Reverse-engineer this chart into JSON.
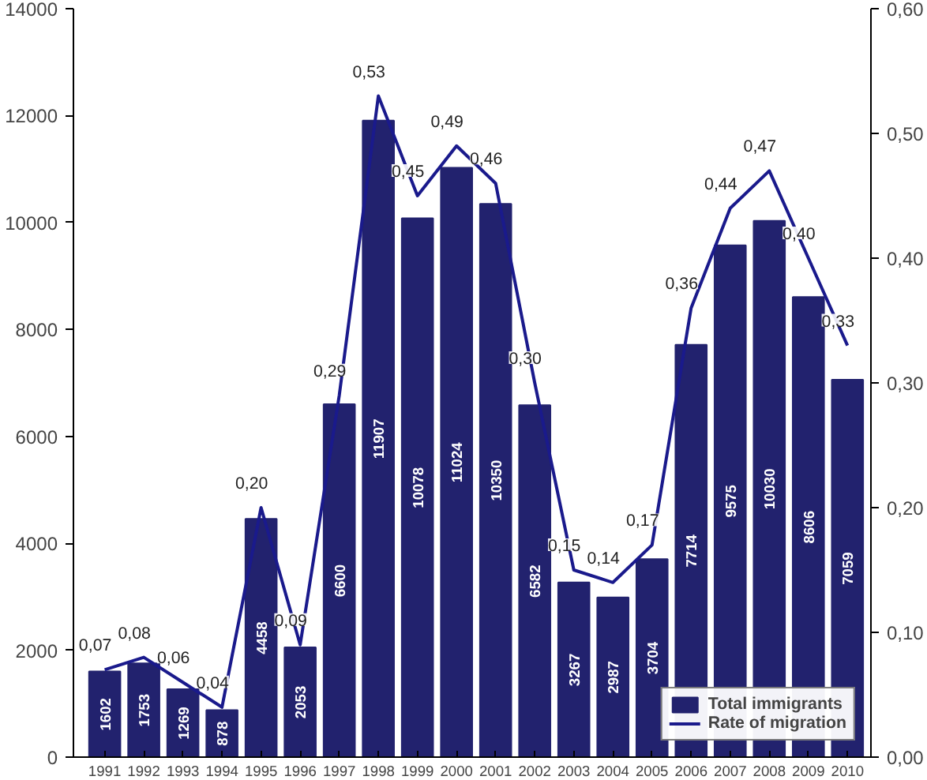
{
  "chart_data": {
    "type": "bar",
    "categories": [
      "1991",
      "1992",
      "1993",
      "1994",
      "1995",
      "1996",
      "1997",
      "1998",
      "1999",
      "2000",
      "2001",
      "2002",
      "2003",
      "2004",
      "2005",
      "2006",
      "2007",
      "2008",
      "2009",
      "2010"
    ],
    "series": [
      {
        "name": "Total immigrants",
        "color": "#22226e",
        "values": [
          1602,
          1753,
          1269,
          878,
          4458,
          2053,
          6600,
          11907,
          10078,
          11024,
          10350,
          6582,
          3267,
          2987,
          3704,
          7714,
          9575,
          10030,
          8606,
          7059
        ],
        "value_labels": [
          "1602",
          "1753",
          "1269",
          "878",
          "4458",
          "2053",
          "6600",
          "11907",
          "10078",
          "11024",
          "10350",
          "6582",
          "3267",
          "2987",
          "3704",
          "7714",
          "9575",
          "10030",
          "8606",
          "7059"
        ]
      },
      {
        "name": "Rate of migration",
        "type": "line",
        "axis": "y2",
        "color": "#1a1a8c",
        "values": [
          0.07,
          0.08,
          0.06,
          0.04,
          0.2,
          0.09,
          0.29,
          0.53,
          0.45,
          0.49,
          0.46,
          0.3,
          0.15,
          0.14,
          0.17,
          0.36,
          0.44,
          0.47,
          0.4,
          0.33
        ],
        "value_labels": [
          "0,07",
          "0,08",
          "0,06",
          "0,04",
          "0,20",
          "0,09",
          "0,29",
          "0,53",
          "0,45",
          "0,49",
          "0,46",
          "0,30",
          "0,15",
          "0,14",
          "0,17",
          "0,36",
          "0,44",
          "0,47",
          "0,40",
          "0,33"
        ]
      }
    ],
    "ylim": [
      0,
      14000
    ],
    "yticks": [
      0,
      2000,
      4000,
      6000,
      8000,
      10000,
      12000,
      14000
    ],
    "y2lim": [
      0,
      0.6
    ],
    "y2ticks": [
      {
        "value": 0,
        "label": "0,00"
      },
      {
        "value": 0.1,
        "label": "0,10"
      },
      {
        "value": 0.2,
        "label": "0,20"
      },
      {
        "value": 0.3,
        "label": "0,30"
      },
      {
        "value": 0.4,
        "label": "0,40"
      },
      {
        "value": 0.5,
        "label": "0,50"
      },
      {
        "value": 0.6,
        "label": "0,60"
      }
    ],
    "grid": false,
    "legend": "bottom right",
    "marker": "none",
    "line_style": "solid"
  }
}
